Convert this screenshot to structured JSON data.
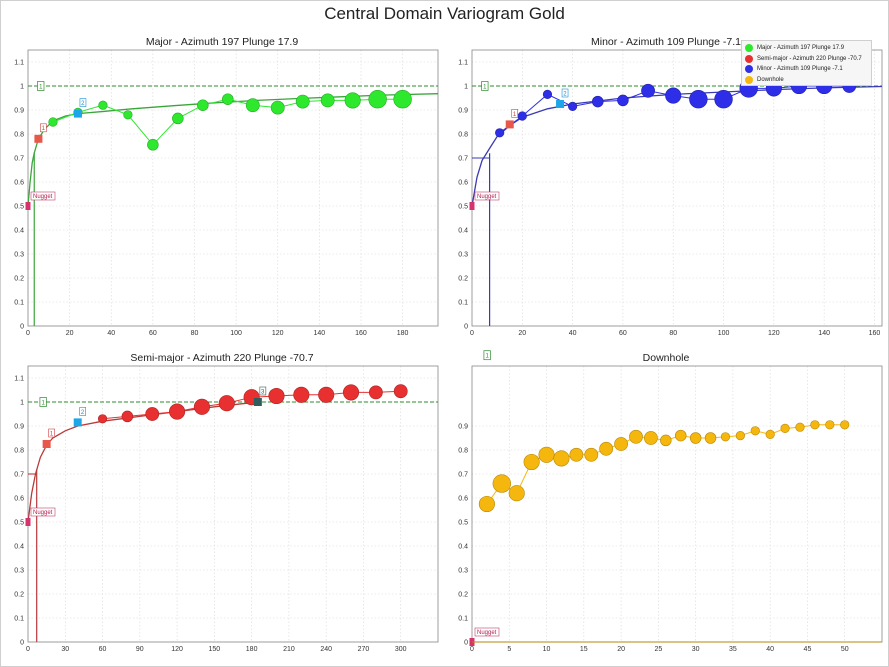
{
  "main_title": "Central Domain Variogram Gold",
  "legend": [
    {
      "label": "Major - Azimuth 197 Plunge 17.9",
      "color": "#2ee82e"
    },
    {
      "label": "Semi-major - Azimuth 220 Plunge -70.7",
      "color": "#e83030"
    },
    {
      "label": "Minor - Azimuth 109 Plunge -7.1",
      "color": "#2e2ee8"
    },
    {
      "label": "Downhole",
      "color": "#f5b70d"
    }
  ],
  "chart_data": [
    {
      "id": "major",
      "type": "scatter",
      "title": "Major - Azimuth 197 Plunge 17.9",
      "color": "#2ee82e",
      "model_color": "#3aa63a",
      "xlim": [
        0,
        197
      ],
      "ylim": [
        0,
        1.15
      ],
      "xticks": [
        0,
        20,
        40,
        60,
        80,
        100,
        120,
        140,
        160,
        180
      ],
      "yticks": [
        0,
        0.1,
        0.2,
        0.3,
        0.4,
        0.5,
        0.6,
        0.7,
        0.8,
        0.9,
        1,
        1.1
      ],
      "ytick_labels": [
        "0",
        "0.1",
        "0.2",
        "0.3",
        "0.4",
        "0.5",
        "0.6",
        "0.7",
        "0.8",
        "0.9",
        "1",
        "1.1"
      ],
      "sill": 1.0,
      "experimental": {
        "x": [
          12,
          24,
          36,
          48,
          60,
          72,
          84,
          96,
          108,
          120,
          132,
          144,
          156,
          168,
          180
        ],
        "y": [
          0.85,
          0.89,
          0.92,
          0.88,
          0.755,
          0.865,
          0.92,
          0.945,
          0.92,
          0.91,
          0.935,
          0.94,
          0.94,
          0.945,
          0.945
        ],
        "size": [
          2,
          2,
          2,
          2,
          3,
          3,
          3,
          3,
          4,
          4,
          4,
          4,
          5,
          6,
          6
        ]
      },
      "model": {
        "nugget": 0.5,
        "x": [
          0,
          1,
          2,
          3,
          5,
          8,
          12,
          18,
          24,
          35,
          50,
          70,
          90,
          110,
          130,
          150,
          170,
          197
        ],
        "y": [
          0.5,
          0.6,
          0.68,
          0.72,
          0.78,
          0.82,
          0.855,
          0.875,
          0.885,
          0.893,
          0.905,
          0.918,
          0.93,
          0.94,
          0.948,
          0.955,
          0.962,
          0.968
        ]
      },
      "nugget_point": [
        0,
        0.5
      ],
      "s1": [
        5,
        0.78
      ],
      "s2": [
        24,
        0.885
      ],
      "drop_x": 3,
      "flag1_x": 6,
      "flag1_y": 1.0,
      "flags": {
        "nugget": "Nugget",
        "s1": "1",
        "s2": "2",
        "sill": "1"
      }
    },
    {
      "id": "minor",
      "type": "scatter",
      "title": "Minor - Azimuth 109 Plunge -7.1",
      "color": "#2e2ee8",
      "model_color": "#3a3ab5",
      "xlim": [
        0,
        163
      ],
      "ylim": [
        0,
        1.15
      ],
      "xticks": [
        0,
        20,
        40,
        60,
        80,
        100,
        120,
        140,
        160
      ],
      "yticks": [
        0,
        0.1,
        0.2,
        0.3,
        0.4,
        0.5,
        0.6,
        0.7,
        0.8,
        0.9,
        1,
        1.1
      ],
      "ytick_labels": [
        "0",
        "0.1",
        "0.2",
        "0.3",
        "0.4",
        "0.5",
        "0.6",
        "0.7",
        "0.8",
        "0.9",
        "1",
        "1.1"
      ],
      "sill": 1.0,
      "experimental": {
        "x": [
          11,
          20,
          30,
          40,
          50,
          60,
          70,
          80,
          90,
          100,
          110,
          120,
          130,
          140,
          150
        ],
        "y": [
          0.805,
          0.875,
          0.965,
          0.915,
          0.935,
          0.94,
          0.98,
          0.96,
          0.945,
          0.945,
          0.99,
          0.99,
          1.0,
          1.0,
          1.0
        ],
        "size": [
          2,
          2,
          2,
          2,
          3,
          3,
          4,
          5,
          6,
          6,
          6,
          5,
          5,
          5,
          4
        ]
      },
      "model": {
        "nugget": 0.5,
        "x": [
          0,
          2,
          4,
          7,
          10,
          15,
          20,
          30,
          40,
          60,
          80,
          100,
          120,
          140,
          163
        ],
        "y": [
          0.5,
          0.62,
          0.69,
          0.74,
          0.79,
          0.835,
          0.87,
          0.905,
          0.925,
          0.95,
          0.965,
          0.975,
          0.985,
          0.992,
          0.998
        ]
      },
      "nugget_point": [
        0,
        0.5
      ],
      "s1": [
        15,
        0.84
      ],
      "s2": [
        35,
        0.925
      ],
      "drop_x": 7,
      "flag1_x": 5,
      "flag1_y": 1.0,
      "hline_y": 0.7,
      "flags": {
        "nugget": "Nugget",
        "s1": "1",
        "s2": "2",
        "sill": "1"
      }
    },
    {
      "id": "semimajor",
      "type": "scatter",
      "title": "Semi-major - Azimuth 220 Plunge -70.7",
      "color": "#e83030",
      "model_color": "#b83a3a",
      "xlim": [
        0,
        330
      ],
      "ylim": [
        0,
        1.15
      ],
      "xticks": [
        0,
        30,
        60,
        90,
        120,
        150,
        180,
        210,
        240,
        270,
        300
      ],
      "yticks": [
        0,
        0.1,
        0.2,
        0.3,
        0.4,
        0.5,
        0.6,
        0.7,
        0.8,
        0.9,
        1,
        1.1
      ],
      "ytick_labels": [
        "0",
        "0.1",
        "0.2",
        "0.3",
        "0.4",
        "0.5",
        "0.6",
        "0.7",
        "0.8",
        "0.9",
        "1",
        "1.1"
      ],
      "sill": 1.0,
      "experimental": {
        "x": [
          60,
          80,
          100,
          120,
          140,
          160,
          180,
          200,
          220,
          240,
          260,
          280,
          300
        ],
        "y": [
          0.93,
          0.94,
          0.95,
          0.96,
          0.98,
          0.995,
          1.02,
          1.025,
          1.03,
          1.03,
          1.04,
          1.04,
          1.045
        ],
        "size": [
          2,
          3,
          4,
          5,
          5,
          5,
          5,
          5,
          5,
          5,
          5,
          4,
          4
        ]
      },
      "model": {
        "nugget": 0.5,
        "x": [
          0,
          3,
          6,
          10,
          15,
          20,
          30,
          40,
          60,
          90,
          120,
          150,
          185
        ],
        "y": [
          0.5,
          0.62,
          0.7,
          0.77,
          0.82,
          0.85,
          0.88,
          0.9,
          0.92,
          0.94,
          0.96,
          0.98,
          1.0
        ]
      },
      "nugget_point": [
        0,
        0.5
      ],
      "s1": [
        15,
        0.825
      ],
      "s2": [
        40,
        0.915
      ],
      "s3": [
        185,
        1.0
      ],
      "drop_x": 7,
      "flag1_x": 12,
      "flag1_y": 1.0,
      "hline_y": 0.7,
      "flags": {
        "nugget": "Nugget",
        "s1": "1",
        "s2": "2",
        "s3": "3",
        "sill": "1"
      }
    },
    {
      "id": "downhole",
      "type": "scatter",
      "title": "Downhole",
      "color": "#f5b70d",
      "model_color": "#b8860b",
      "xlim": [
        0,
        55
      ],
      "ylim": [
        0,
        1.15
      ],
      "xticks": [
        0,
        5,
        10,
        15,
        20,
        25,
        30,
        35,
        40,
        45,
        50
      ],
      "yticks": [
        0,
        0.1,
        0.2,
        0.3,
        0.4,
        0.5,
        0.6,
        0.7,
        0.8,
        0.9
      ],
      "ytick_labels": [
        "0",
        "0.1",
        "0.2",
        "0.3",
        "0.4",
        "0.5",
        "0.6",
        "0.7",
        "0.8",
        "0.9"
      ],
      "experimental": {
        "x": [
          2,
          4,
          6,
          8,
          10,
          12,
          14,
          16,
          18,
          20,
          22,
          24,
          26,
          28,
          30,
          32,
          34,
          36,
          38,
          40,
          42,
          44,
          46,
          48,
          50
        ],
        "y": [
          0.575,
          0.66,
          0.62,
          0.75,
          0.78,
          0.765,
          0.78,
          0.78,
          0.805,
          0.825,
          0.855,
          0.85,
          0.84,
          0.86,
          0.85,
          0.85,
          0.855,
          0.86,
          0.88,
          0.865,
          0.89,
          0.895,
          0.905,
          0.905,
          0.905
        ],
        "size": [
          5,
          6,
          5,
          5,
          5,
          5,
          4,
          4,
          4,
          4,
          4,
          4,
          3,
          3,
          3,
          3,
          2,
          2,
          2,
          2,
          2,
          2,
          2,
          2,
          2
        ]
      },
      "nugget_point": [
        0,
        0.0
      ],
      "flag1_x": 2,
      "flag1_y": 1.195,
      "flags": {
        "nugget": "Nugget",
        "sill": "1"
      }
    }
  ]
}
